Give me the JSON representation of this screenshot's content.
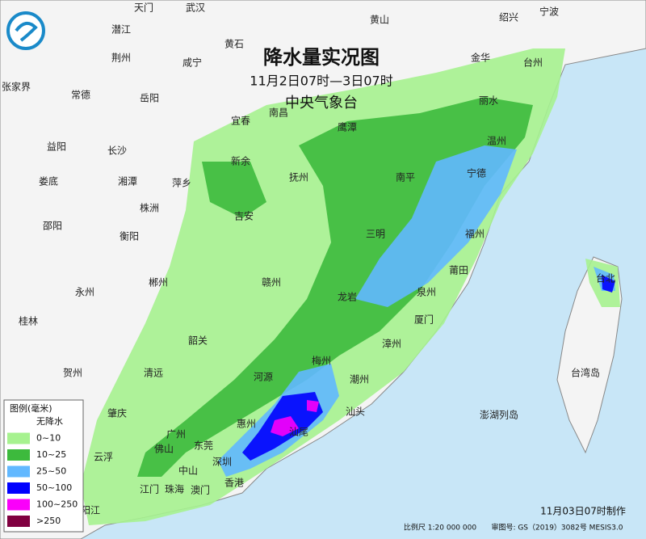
{
  "title": "降水量实况图",
  "time_range": "11月2日07时—3日07时",
  "agency": "中央气象台",
  "legend": {
    "title": "图例(毫米)",
    "items": [
      {
        "label": "无降水",
        "color": "#ffffff"
      },
      {
        "label": "0~10",
        "color": "#a6f28f"
      },
      {
        "label": "10~25",
        "color": "#3dba3d"
      },
      {
        "label": "25~50",
        "color": "#61b8ff"
      },
      {
        "label": "50~100",
        "color": "#0000fe"
      },
      {
        "label": "100~250",
        "color": "#fa00fa"
      },
      {
        "label": ">250",
        "color": "#800040"
      }
    ]
  },
  "cities": [
    "天门",
    "武汉",
    "黄山",
    "绍兴",
    "宁波",
    "潜江",
    "黄石",
    "荆州",
    "咸宁",
    "金华",
    "台州",
    "张家界",
    "常德",
    "岳阳",
    "丽水",
    "南昌",
    "宜春",
    "鹰潭",
    "温州",
    "益阳",
    "长沙",
    "新余",
    "抚州",
    "南平",
    "宁德",
    "娄底",
    "湘潭",
    "萍乡",
    "株洲",
    "吉安",
    "三明",
    "福州",
    "邵阳",
    "衡阳",
    "莆田",
    "永州",
    "郴州",
    "赣州",
    "龙岩",
    "泉州",
    "台北",
    "桂林",
    "厦门",
    "韶关",
    "漳州",
    "梅州",
    "贺州",
    "清远",
    "河源",
    "潮州",
    "台湾岛",
    "肇庆",
    "汕头",
    "澎湖列岛",
    "广州",
    "惠州",
    "汕尾",
    "佛山",
    "东莞",
    "云浮",
    "深圳",
    "中山",
    "香港",
    "江门",
    "珠海",
    "澳门",
    "阳江"
  ],
  "footer": {
    "made": "11月03日07时制作",
    "scale": "比例尺 1:20 000 000",
    "map_no": "审图号: GS（2019）3082号 MESIS3.0"
  }
}
